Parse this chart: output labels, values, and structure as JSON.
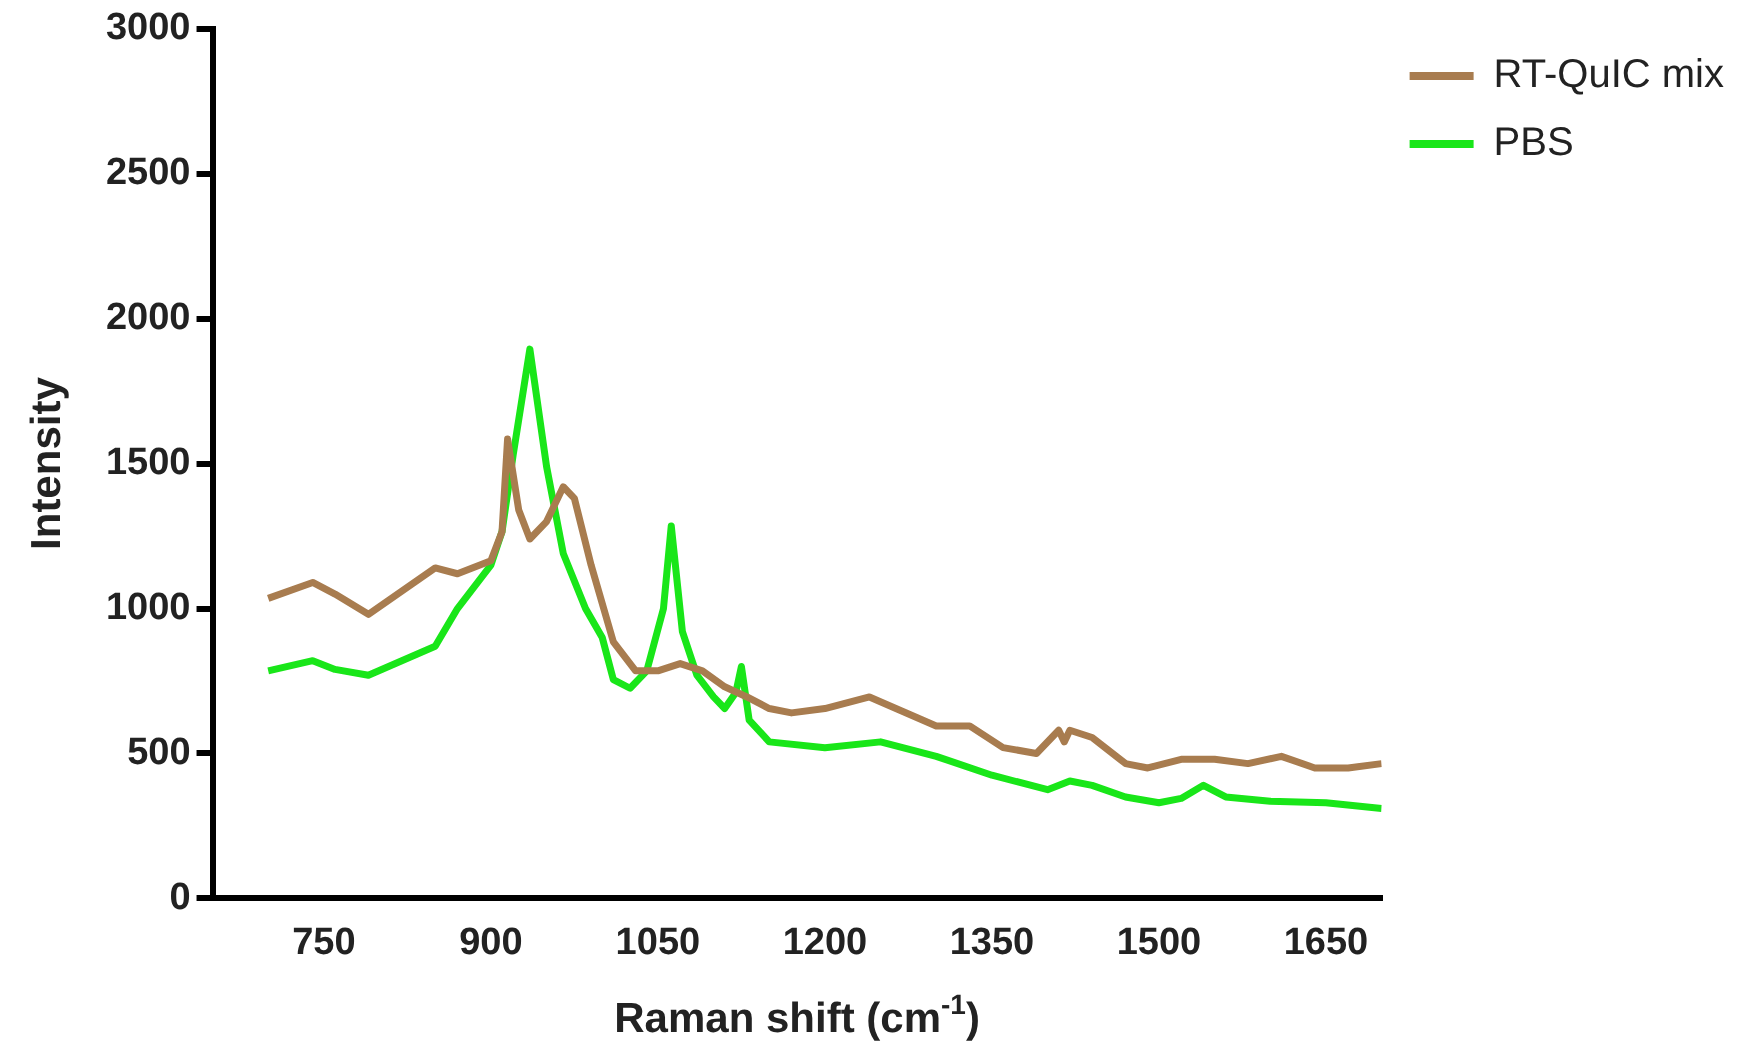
{
  "chart_data": {
    "type": "line",
    "xlabel": "Raman shift (cm$^{-1}$)",
    "ylabel": "Intensity",
    "xlim": [
      650,
      1700
    ],
    "xticks": [
      750,
      900,
      1050,
      1200,
      1350,
      1500,
      1650
    ],
    "ylim": [
      0,
      3000
    ],
    "yticks": [
      0,
      500,
      1000,
      1500,
      2000,
      2500,
      3000
    ],
    "grid": false,
    "legend": "top right",
    "marker": "none",
    "line_style": "solid",
    "series": [
      {
        "name": "RT-QuIC mix",
        "color": "#a87c4f",
        "x": [
          700,
          740,
          760,
          790,
          820,
          850,
          870,
          900,
          910,
          915,
          925,
          935,
          950,
          965,
          975,
          990,
          1010,
          1030,
          1050,
          1070,
          1090,
          1110,
          1130,
          1150,
          1170,
          1200,
          1240,
          1270,
          1300,
          1330,
          1360,
          1390,
          1410,
          1415,
          1420,
          1440,
          1470,
          1490,
          1520,
          1550,
          1580,
          1610,
          1640,
          1670,
          1700
        ],
        "values": [
          1035,
          1090,
          1050,
          980,
          1060,
          1140,
          1120,
          1165,
          1265,
          1585,
          1340,
          1240,
          1300,
          1420,
          1380,
          1150,
          885,
          785,
          785,
          810,
          785,
          730,
          695,
          655,
          640,
          655,
          695,
          645,
          595,
          595,
          520,
          500,
          580,
          540,
          580,
          555,
          465,
          450,
          480,
          480,
          465,
          490,
          450,
          450,
          465
        ]
      },
      {
        "name": "PBS",
        "color": "#19e619",
        "x": [
          700,
          740,
          760,
          790,
          820,
          850,
          870,
          900,
          910,
          920,
          935,
          950,
          965,
          985,
          1000,
          1010,
          1025,
          1040,
          1055,
          1062,
          1072,
          1085,
          1100,
          1110,
          1120,
          1125,
          1132,
          1150,
          1200,
          1250,
          1300,
          1350,
          1400,
          1420,
          1440,
          1470,
          1500,
          1520,
          1540,
          1560,
          1600,
          1650,
          1700
        ],
        "values": [
          785,
          820,
          790,
          770,
          820,
          870,
          1000,
          1150,
          1265,
          1530,
          1895,
          1490,
          1190,
          1000,
          900,
          755,
          725,
          785,
          1000,
          1285,
          920,
          770,
          695,
          655,
          710,
          800,
          615,
          540,
          520,
          540,
          490,
          425,
          375,
          405,
          390,
          350,
          330,
          345,
          390,
          350,
          335,
          330,
          310
        ]
      }
    ]
  }
}
